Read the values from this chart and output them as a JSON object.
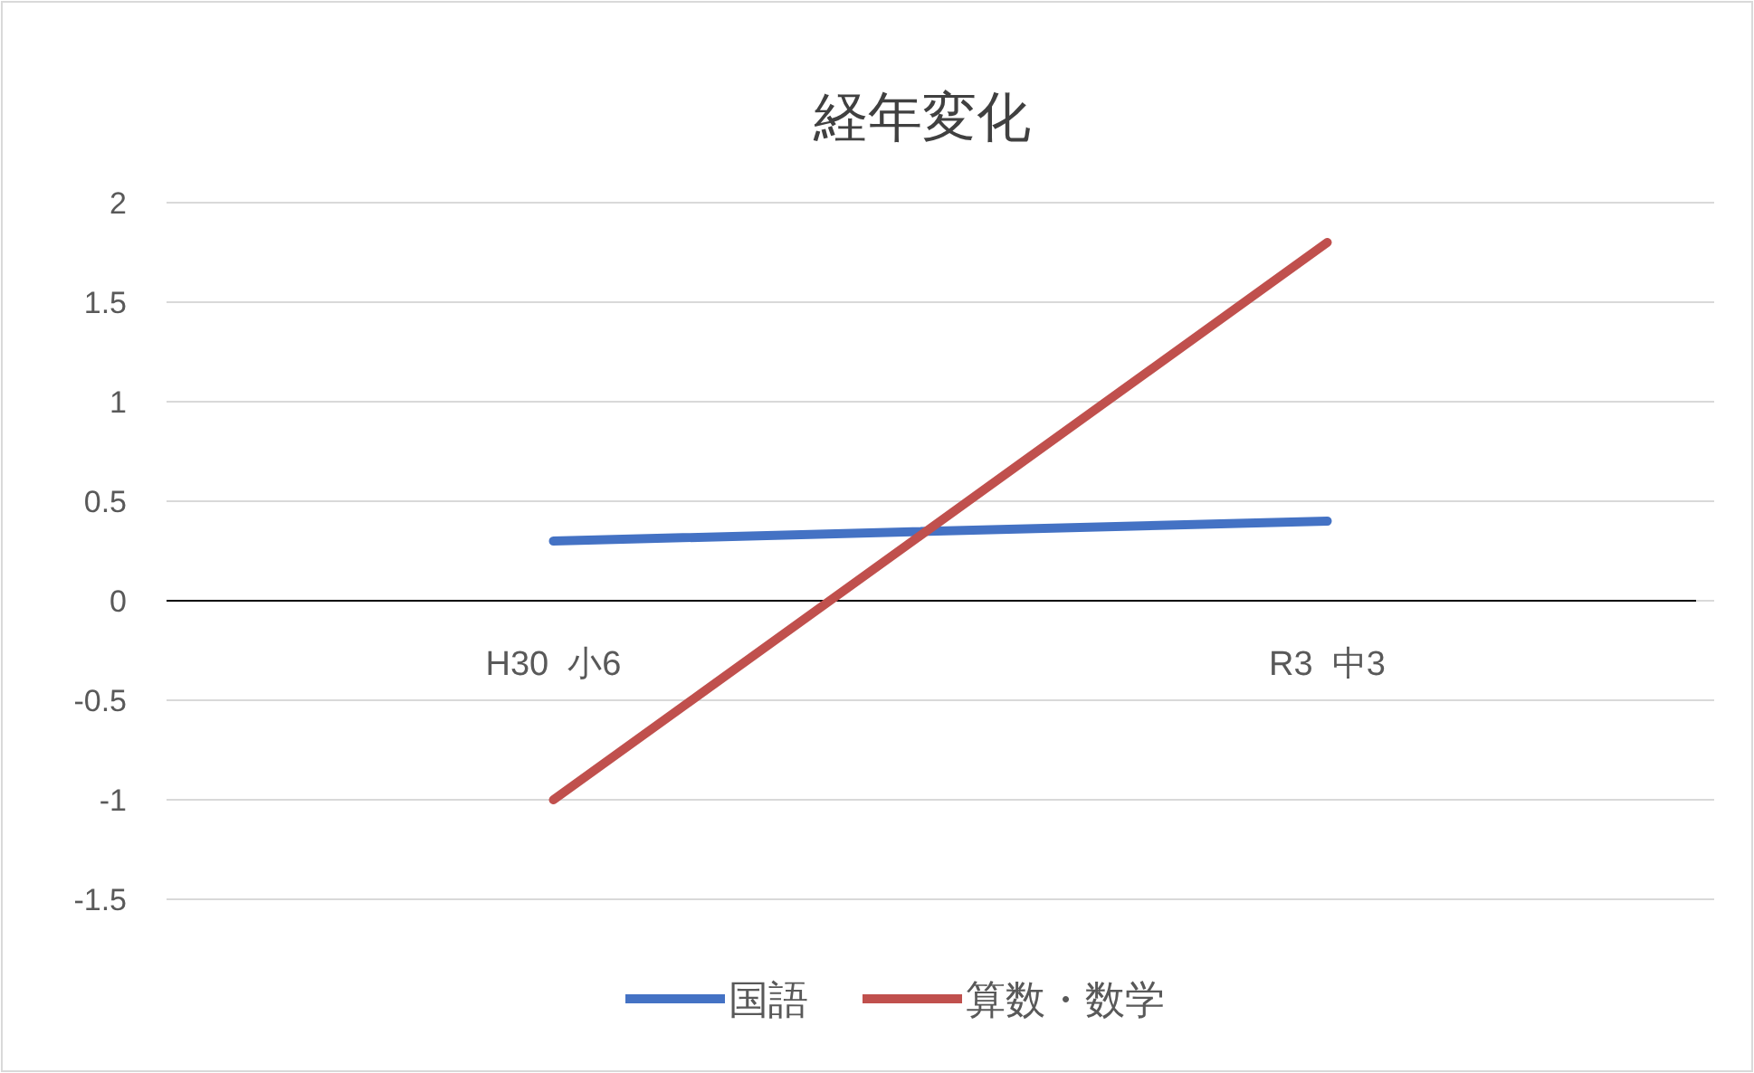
{
  "chart_data": {
    "type": "line",
    "title": "経年変化",
    "categories": [
      "H30  小6",
      "R3  中3"
    ],
    "series": [
      {
        "name": "国語",
        "color": "#4472c4",
        "values": [
          0.3,
          0.4
        ]
      },
      {
        "name": "算数・数学",
        "color": "#c0504d",
        "values": [
          -1,
          1.8
        ]
      }
    ],
    "ylim": [
      -1.5,
      2
    ],
    "yticks": [
      -1.5,
      -1,
      -0.5,
      0,
      0.5,
      1,
      1.5,
      2
    ],
    "grid": "y",
    "legend": "bottom",
    "marker": "none",
    "line_style": "solid"
  }
}
